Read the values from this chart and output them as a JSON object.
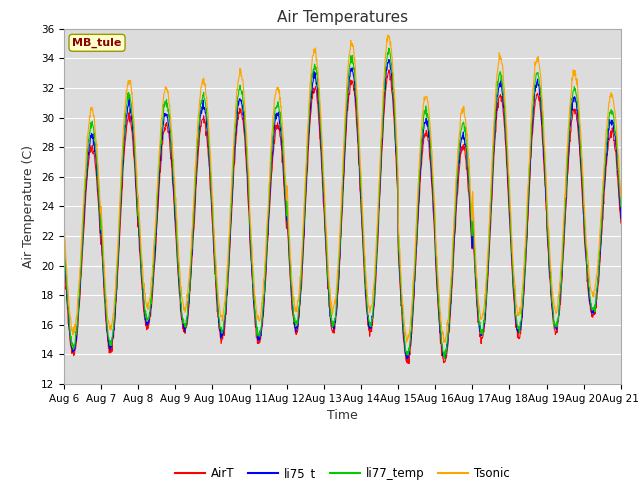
{
  "title": "Air Temperatures",
  "xlabel": "Time",
  "ylabel": "Air Temperature (C)",
  "ylim": [
    12,
    36
  ],
  "tick_labels": [
    "Aug 6",
    "Aug 7",
    "Aug 8",
    "Aug 9",
    "Aug 10",
    "Aug 11",
    "Aug 12",
    "Aug 13",
    "Aug 14",
    "Aug 15",
    "Aug 16",
    "Aug 17",
    "Aug 18",
    "Aug 19",
    "Aug 20",
    "Aug 21"
  ],
  "station_label": "MB_tule",
  "station_label_color": "#8B0000",
  "station_bg_color": "#FFFFCC",
  "legend_entries": [
    "AirT",
    "li75_t",
    "li77_temp",
    "Tsonic"
  ],
  "line_colors": [
    "#FF0000",
    "#0000FF",
    "#00CC00",
    "#FFA500"
  ],
  "fig_bg_color": "#FFFFFF",
  "plot_bg": "#DCDCDC",
  "grid_color": "#FFFFFF",
  "title_fontsize": 11,
  "axis_label_fontsize": 9,
  "tick_fontsize": 7.5,
  "n_points": 1440,
  "days": 15
}
